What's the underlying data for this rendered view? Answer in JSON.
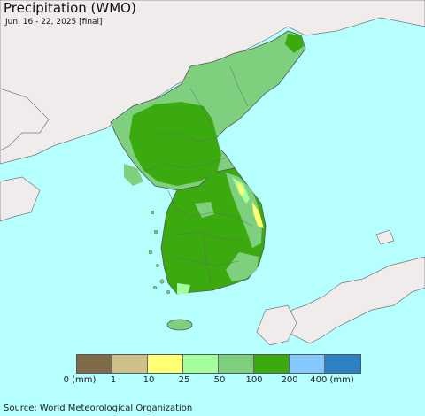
{
  "title": "Precipitation (WMO)",
  "subtitle": "Jun. 16 - 22, 2025 [final]",
  "legend": {
    "bins": [
      {
        "color": "#7f6a49"
      },
      {
        "color": "#cfbf89"
      },
      {
        "color": "#ffff73"
      },
      {
        "color": "#a3ff9a"
      },
      {
        "color": "#7ed07e"
      },
      {
        "color": "#3aaa0f"
      },
      {
        "color": "#83c8ff"
      },
      {
        "color": "#2d82c4"
      }
    ],
    "labels": [
      "0 (mm)",
      "1",
      "10",
      "25",
      "50",
      "100",
      "200",
      "400 (mm)"
    ]
  },
  "source": "Source: World Meteorological Organization",
  "colors": {
    "ocean": "#b5ffff",
    "foreign_land": "#f0ecec",
    "border": "#444444"
  }
}
